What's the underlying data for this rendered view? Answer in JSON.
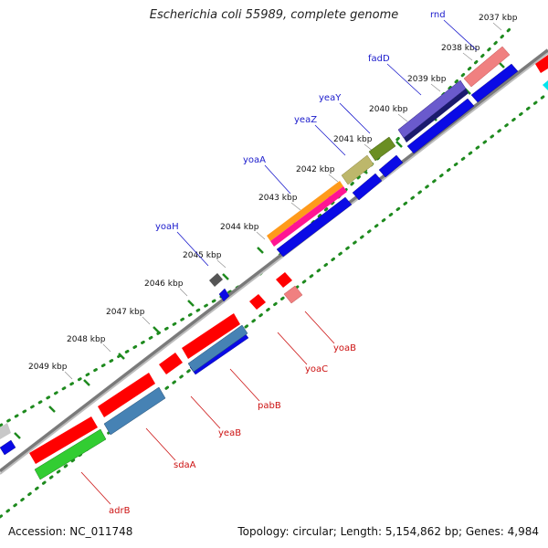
{
  "title": "Escherichia coli 55989, complete genome",
  "footer": {
    "accession": "Accession: NC_011748",
    "summary": "Topology: circular; Length: 5,154,862 bp; Genes: 4,984"
  },
  "colors": {
    "backbone": "#7a7a7a",
    "dotted_guide": "#1e8a1e",
    "plus_gene_label": "#1a1acc",
    "minus_gene_label": "#cc1111"
  },
  "kbp_ticks": [
    {
      "label": "2037 kbp"
    },
    {
      "label": "2038 kbp"
    },
    {
      "label": "2039 kbp"
    },
    {
      "label": "2040 kbp"
    },
    {
      "label": "2041 kbp"
    },
    {
      "label": "2042 kbp"
    },
    {
      "label": "2043 kbp"
    },
    {
      "label": "2044 kbp"
    },
    {
      "label": "2045 kbp"
    },
    {
      "label": "2046 kbp"
    },
    {
      "label": "2047 kbp"
    },
    {
      "label": "2048 kbp"
    },
    {
      "label": "2049 kbp"
    }
  ],
  "genes_plus_strand": [
    {
      "name": "rnd",
      "color": "#f08080"
    },
    {
      "name": "fadD",
      "color": "#6a5acd"
    },
    {
      "name": "yeaY",
      "color": "#6b8e23"
    },
    {
      "name": "yeaZ",
      "color": "#bdb76b"
    },
    {
      "name": "yoaA",
      "color": "#ff1493"
    },
    {
      "name": "yoaH",
      "color": "#555555"
    }
  ],
  "genes_minus_strand": [
    {
      "name": "yoaB",
      "color": "#f08080"
    },
    {
      "name": "yoaC",
      "color": "#ff0000"
    },
    {
      "name": "pabB",
      "color": "#4682b4"
    },
    {
      "name": "yeaB",
      "color": "#ff0000"
    },
    {
      "name": "sdaA",
      "color": "#ff0000"
    },
    {
      "name": "adrB",
      "color": "#32cd32"
    }
  ]
}
